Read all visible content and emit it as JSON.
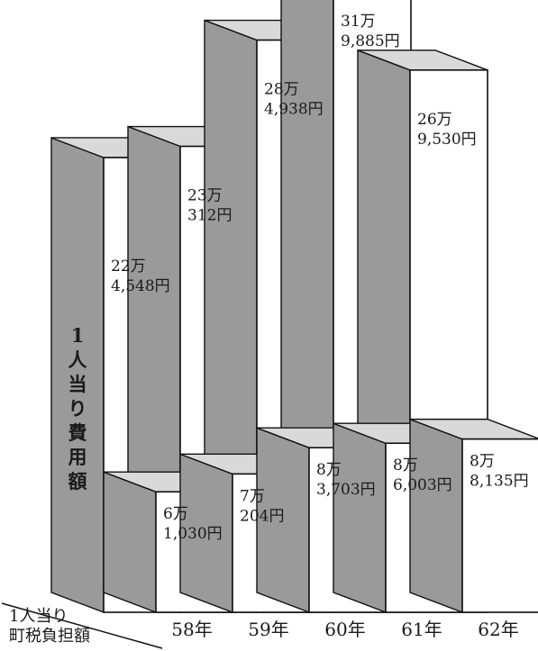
{
  "chart_data": {
    "type": "bar",
    "categories": [
      "58年",
      "59年",
      "60年",
      "61年",
      "62年"
    ],
    "series": [
      {
        "name": "1人当り費用額",
        "values": [
          224548,
          230312,
          284938,
          319885,
          269530
        ],
        "labels": [
          [
            "22万",
            "4,548円"
          ],
          [
            "23万",
            "312円"
          ],
          [
            "28万",
            "4,938円"
          ],
          [
            "31万",
            "9,885円"
          ],
          [
            "26万",
            "9,530円"
          ]
        ]
      },
      {
        "name": "1人当り町税負担額",
        "values": [
          61030,
          70204,
          83703,
          86003,
          88135
        ],
        "labels": [
          [
            "6万",
            "1,030円"
          ],
          [
            "7万",
            "204円"
          ],
          [
            "8万",
            "3,703円"
          ],
          [
            "8万",
            "6,003円"
          ],
          [
            "8万",
            "8,135円"
          ]
        ]
      }
    ]
  },
  "side_label": "1人当り費用額",
  "corner_label": [
    "1人当り",
    "町税負担額"
  ],
  "colors": {
    "face": "#ffffff",
    "side": "#9a9a9a",
    "top": "#d9d9d9",
    "stroke": "#111111"
  }
}
